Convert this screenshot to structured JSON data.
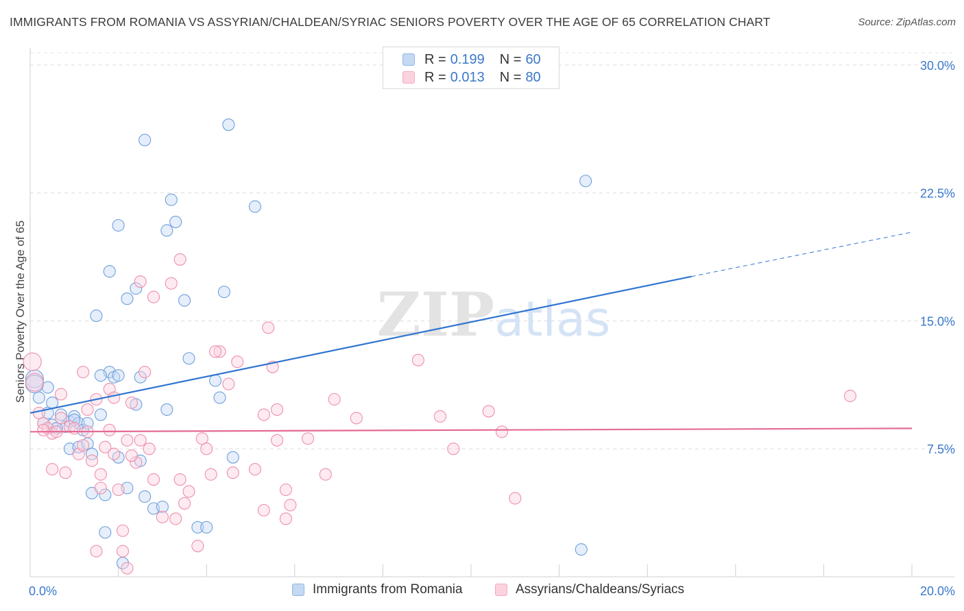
{
  "chart_data": {
    "type": "scatter",
    "title": "IMMIGRANTS FROM ROMANIA VS ASSYRIAN/CHALDEAN/SYRIAC SENIORS POVERTY OVER THE AGE OF 65 CORRELATION CHART",
    "source": "Source: ZipAtlas.com",
    "xlabel": "",
    "ylabel": "Seniors Poverty Over the Age of 65",
    "xlim": [
      0,
      20
    ],
    "ylim": [
      0,
      31
    ],
    "x_tick_labels": {
      "left": "0.0%",
      "right": "20.0%"
    },
    "y_ticks": [
      7.5,
      15.0,
      22.5,
      30.0
    ],
    "y_tick_labels": [
      "7.5%",
      "15.0%",
      "22.5%",
      "30.0%"
    ],
    "watermark": "ZIPatlas",
    "legend": [
      {
        "name": "Immigrants from Romania",
        "R_label": "R =",
        "R": "0.199",
        "N_label": "N =",
        "N": "60",
        "color": "#8fb4e6",
        "line": "#2f74d0"
      },
      {
        "name": "Assyrians/Chaldeans/Syriacs",
        "R_label": "R =",
        "R": "0.013",
        "N_label": "N =",
        "N": "80",
        "color": "#f4a9c0",
        "line": "#e46a93"
      }
    ],
    "series": [
      {
        "name": "Immigrants from Romania",
        "color": "#8fb4e6",
        "trend": {
          "x_start": 0,
          "y_start": 9.6,
          "x_solid_end": 15.0,
          "y_solid_end": 17.6,
          "x_dash_end": 20.0,
          "y_dash_end": 20.2
        },
        "points": [
          [
            0.1,
            11.6
          ],
          [
            0.1,
            11.3
          ],
          [
            0.2,
            10.5
          ],
          [
            0.3,
            9.0
          ],
          [
            0.5,
            10.2
          ],
          [
            0.4,
            9.6
          ],
          [
            0.5,
            8.9
          ],
          [
            0.7,
            9.5
          ],
          [
            0.8,
            8.8
          ],
          [
            0.9,
            9.1
          ],
          [
            1.0,
            9.4
          ],
          [
            1.1,
            9.0
          ],
          [
            1.2,
            8.6
          ],
          [
            1.3,
            9.0
          ],
          [
            0.6,
            8.7
          ],
          [
            0.9,
            7.5
          ],
          [
            1.1,
            7.6
          ],
          [
            1.3,
            7.8
          ],
          [
            1.4,
            7.2
          ],
          [
            1.8,
            12.0
          ],
          [
            1.9,
            11.7
          ],
          [
            1.6,
            11.8
          ],
          [
            1.6,
            9.5
          ],
          [
            1.5,
            15.3
          ],
          [
            1.8,
            17.9
          ],
          [
            2.0,
            20.6
          ],
          [
            2.2,
            16.3
          ],
          [
            2.4,
            16.9
          ],
          [
            2.6,
            25.6
          ],
          [
            2.5,
            11.7
          ],
          [
            2.4,
            10.1
          ],
          [
            2.0,
            7.0
          ],
          [
            2.5,
            6.8
          ],
          [
            2.2,
            5.2
          ],
          [
            1.4,
            4.9
          ],
          [
            1.7,
            4.8
          ],
          [
            2.6,
            4.7
          ],
          [
            2.8,
            4.0
          ],
          [
            3.0,
            4.1
          ],
          [
            3.1,
            20.3
          ],
          [
            3.2,
            22.1
          ],
          [
            3.3,
            20.8
          ],
          [
            3.1,
            9.8
          ],
          [
            3.5,
            16.2
          ],
          [
            3.6,
            12.8
          ],
          [
            3.8,
            2.9
          ],
          [
            4.0,
            2.9
          ],
          [
            4.2,
            11.5
          ],
          [
            4.3,
            10.5
          ],
          [
            4.4,
            16.7
          ],
          [
            4.5,
            26.5
          ],
          [
            4.6,
            7.0
          ],
          [
            5.1,
            21.7
          ],
          [
            1.7,
            2.6
          ],
          [
            2.1,
            0.8
          ],
          [
            12.6,
            23.2
          ],
          [
            12.5,
            1.6
          ],
          [
            0.4,
            11.1
          ],
          [
            1.0,
            9.2
          ],
          [
            2.0,
            11.8
          ]
        ]
      },
      {
        "name": "Assyrians/Chaldeans/Syriacs",
        "color": "#f4a9c0",
        "trend": {
          "x_start": 0,
          "y_start": 8.5,
          "x_end": 20.0,
          "y_end": 8.7
        },
        "points": [
          [
            0.05,
            12.6
          ],
          [
            0.1,
            11.4
          ],
          [
            0.2,
            9.6
          ],
          [
            0.3,
            9.0
          ],
          [
            0.4,
            8.7
          ],
          [
            0.5,
            8.4
          ],
          [
            0.6,
            8.5
          ],
          [
            0.3,
            8.6
          ],
          [
            0.5,
            6.3
          ],
          [
            0.7,
            9.3
          ],
          [
            0.8,
            6.1
          ],
          [
            0.7,
            10.7
          ],
          [
            0.9,
            8.8
          ],
          [
            1.0,
            8.7
          ],
          [
            1.1,
            7.2
          ],
          [
            1.2,
            7.7
          ],
          [
            1.3,
            8.5
          ],
          [
            1.2,
            12.0
          ],
          [
            1.3,
            9.8
          ],
          [
            1.4,
            6.8
          ],
          [
            1.5,
            10.4
          ],
          [
            1.6,
            5.2
          ],
          [
            1.6,
            6.0
          ],
          [
            1.7,
            7.6
          ],
          [
            1.8,
            11.0
          ],
          [
            1.9,
            10.5
          ],
          [
            1.8,
            8.6
          ],
          [
            1.9,
            7.2
          ],
          [
            2.0,
            5.1
          ],
          [
            2.1,
            2.7
          ],
          [
            2.2,
            8.0
          ],
          [
            2.3,
            10.2
          ],
          [
            2.4,
            6.7
          ],
          [
            2.5,
            8.0
          ],
          [
            2.5,
            17.3
          ],
          [
            2.6,
            12.0
          ],
          [
            2.7,
            7.5
          ],
          [
            2.8,
            5.7
          ],
          [
            3.0,
            3.5
          ],
          [
            3.2,
            17.2
          ],
          [
            3.3,
            3.4
          ],
          [
            3.4,
            5.7
          ],
          [
            3.5,
            4.3
          ],
          [
            3.6,
            5.0
          ],
          [
            2.8,
            16.4
          ],
          [
            3.4,
            18.6
          ],
          [
            3.8,
            1.8
          ],
          [
            3.9,
            8.1
          ],
          [
            4.0,
            7.5
          ],
          [
            4.1,
            6.0
          ],
          [
            4.3,
            13.2
          ],
          [
            4.5,
            11.3
          ],
          [
            4.6,
            6.1
          ],
          [
            4.7,
            12.6
          ],
          [
            5.1,
            6.3
          ],
          [
            5.3,
            3.9
          ],
          [
            5.3,
            9.5
          ],
          [
            5.4,
            14.6
          ],
          [
            5.5,
            12.3
          ],
          [
            5.6,
            8.0
          ],
          [
            5.8,
            5.1
          ],
          [
            5.9,
            4.2
          ],
          [
            5.8,
            3.4
          ],
          [
            5.6,
            9.8
          ],
          [
            6.3,
            8.1
          ],
          [
            6.7,
            6.0
          ],
          [
            6.9,
            10.4
          ],
          [
            7.4,
            9.3
          ],
          [
            8.8,
            12.7
          ],
          [
            9.3,
            9.4
          ],
          [
            9.6,
            7.5
          ],
          [
            10.4,
            9.7
          ],
          [
            10.7,
            8.5
          ],
          [
            11.0,
            4.6
          ],
          [
            18.6,
            10.6
          ],
          [
            2.1,
            1.5
          ],
          [
            2.2,
            0.5
          ],
          [
            1.5,
            1.5
          ],
          [
            2.3,
            7.1
          ],
          [
            4.2,
            13.2
          ]
        ]
      }
    ]
  }
}
